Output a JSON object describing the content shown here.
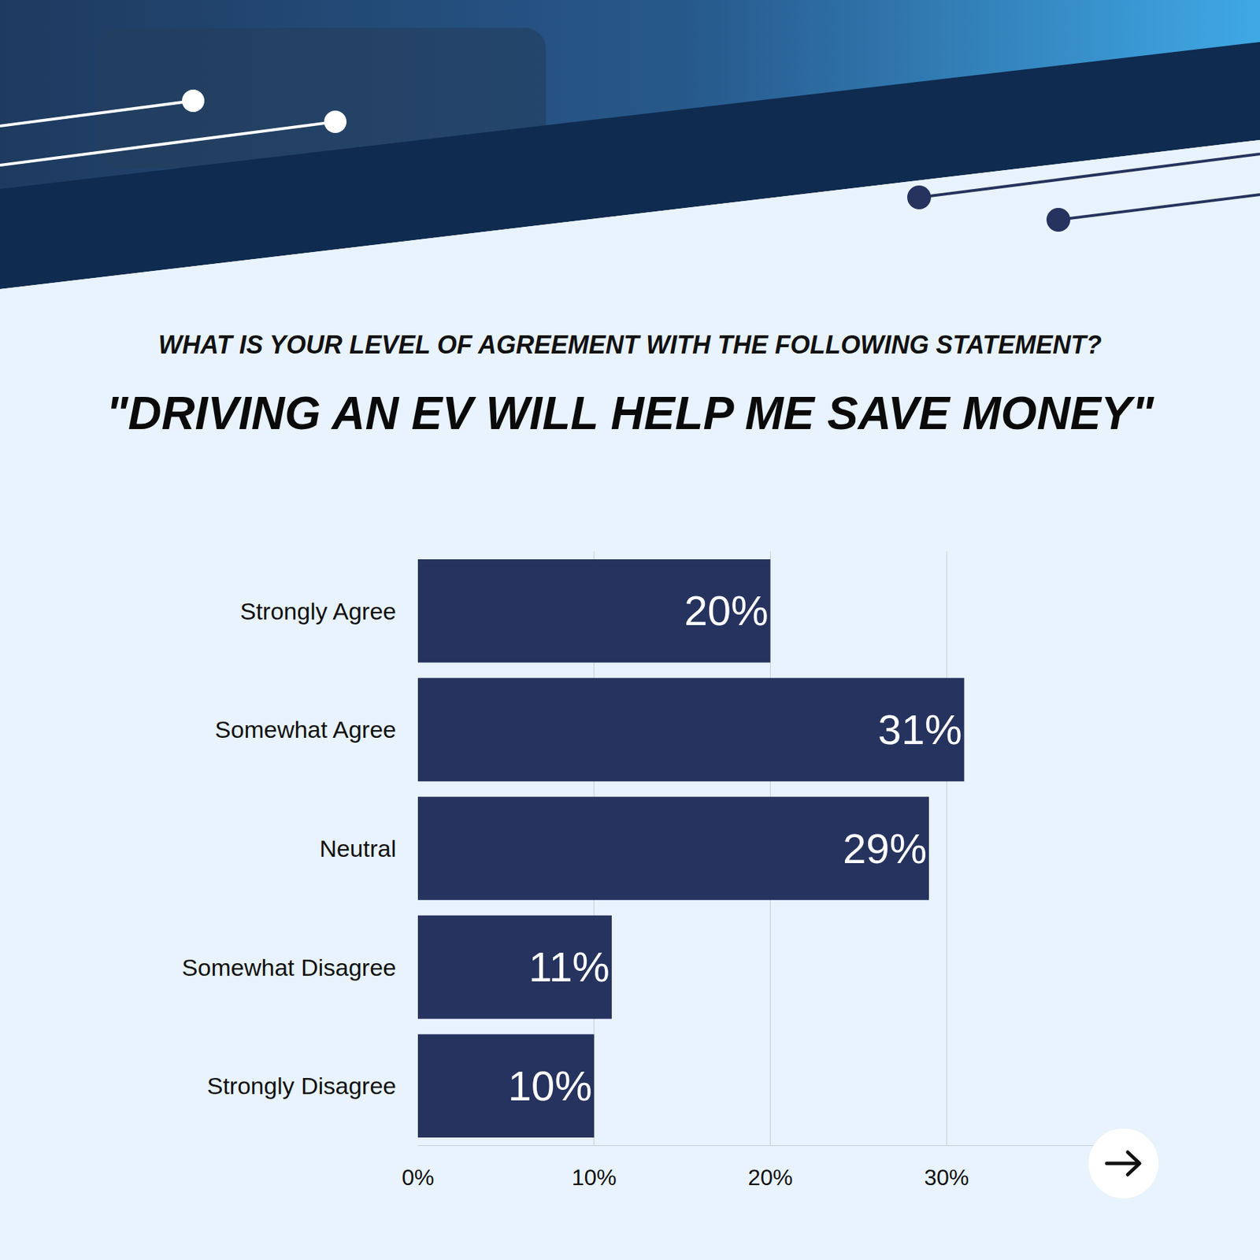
{
  "chart_data": {
    "type": "bar",
    "orientation": "horizontal",
    "title": "WHAT IS YOUR LEVEL OF AGREEMENT WITH THE FOLLOWING STATEMENT?",
    "subtitle": "\"DRIVING AN EV WILL HELP ME SAVE MONEY\"",
    "categories": [
      "Strongly Agree",
      "Somewhat Agree",
      "Neutral",
      "Somewhat Disagree",
      "Strongly Disagree"
    ],
    "values": [
      20,
      31,
      29,
      11,
      10
    ],
    "value_labels": [
      "20%",
      "31%",
      "29%",
      "11%",
      "10%"
    ],
    "data_labels": true,
    "color": "#26335e",
    "xlim": [
      0,
      40
    ],
    "xticks": [
      {
        "value": 0,
        "label": "0%"
      },
      {
        "value": 10,
        "label": "10%"
      },
      {
        "value": 20,
        "label": "20%"
      },
      {
        "value": 30,
        "label": "30%"
      }
    ],
    "grid": true
  }
}
